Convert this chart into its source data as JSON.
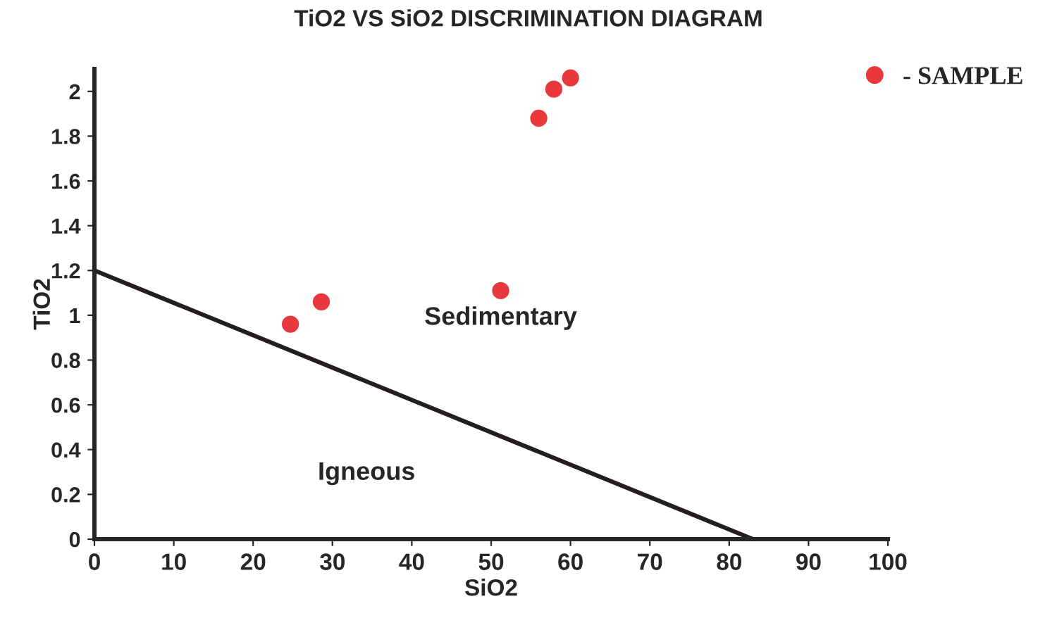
{
  "chart_data": {
    "type": "scatter",
    "title": "TiO2 VS SiO2 DISCRIMINATION DIAGRAM",
    "xlabel": "SiO2",
    "ylabel": "TiO2",
    "series": [
      {
        "name": "- SAMPLE",
        "marker": "circle",
        "color": "#e8383d",
        "x": [
          24.7,
          28.6,
          51.2,
          56,
          57.9,
          60
        ],
        "values": [
          0.96,
          1.06,
          1.11,
          1.88,
          2.01,
          2.06
        ]
      },
      {
        "type": "line",
        "color": "#231f20",
        "x": [
          0,
          83
        ],
        "values": [
          1.2,
          0
        ]
      }
    ],
    "annotations": [
      "Sedimentary",
      "Igneous"
    ],
    "xlim": [
      0,
      100
    ],
    "ylim": [
      0,
      2.1
    ],
    "xticks": [
      0,
      10,
      20,
      30,
      40,
      50,
      60,
      70,
      80,
      90,
      100
    ],
    "yticks": [
      0,
      0.2,
      0.4,
      0.6,
      0.8,
      1,
      1.2,
      1.4,
      1.6,
      1.8,
      2
    ],
    "grid": false,
    "legend": "top right",
    "line_style": "solid"
  }
}
